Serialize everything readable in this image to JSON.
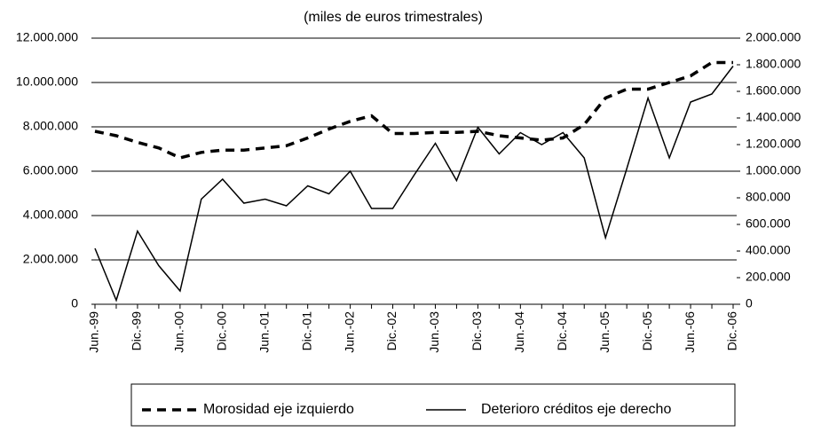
{
  "chart_data": {
    "type": "line",
    "title": "(miles de euros trimestrales)",
    "categories": [
      "Jun.-99",
      null,
      "Dic.-99",
      null,
      "Jun.-00",
      null,
      "Dic.-00",
      null,
      "Jun.-01",
      null,
      "Dic.-01",
      null,
      "Jun.-02",
      null,
      "Dic.-02",
      null,
      "Jun.-03",
      null,
      "Dic.-03",
      null,
      "Jun.-04",
      null,
      "Dic.-04",
      null,
      "Jun.-05",
      null,
      "Dic.-05",
      null,
      "Jun.-06",
      null,
      "Dic.-06"
    ],
    "series": [
      {
        "name": "Morosidad eje izquierdo",
        "color": "#000000",
        "dash": true,
        "values": [
          7800000,
          7600000,
          7300000,
          7050000,
          6600000,
          6850000,
          6950000,
          6950000,
          7050000,
          7150000,
          7500000,
          7900000,
          8250000,
          8500000,
          7700000,
          7700000,
          7750000,
          7750000,
          7800000,
          7600000,
          7500000,
          7400000,
          7500000,
          8100000,
          9300000,
          9700000,
          9700000,
          10000000,
          10300000,
          10900000,
          10900000
        ]
      },
      {
        "name": "Deterioro créditos eje derecho",
        "color": "#000000",
        "dash": false,
        "axis": "y2",
        "values": [
          420000,
          30000,
          550000,
          290000,
          100000,
          790000,
          940000,
          760000,
          790000,
          740000,
          890000,
          830000,
          1000000,
          720000,
          720000,
          970000,
          1210000,
          930000,
          1330000,
          1130000,
          1290000,
          1200000,
          1290000,
          1100000,
          500000,
          1020000,
          1550000,
          1100000,
          1520000,
          1580000,
          1790000
        ]
      }
    ],
    "ylim": [
      0,
      12000000
    ],
    "yticks": [
      0,
      {
        "value": 2000000,
        "label": "2.000.000"
      },
      {
        "value": 4000000,
        "label": "4.000.000"
      },
      {
        "value": 6000000,
        "label": "6.000.000"
      },
      {
        "value": 8000000,
        "label": "8.000.000"
      },
      {
        "value": 10000000,
        "label": "10.000.000"
      },
      {
        "value": 12000000,
        "label": "12.000.000"
      }
    ],
    "y2lim": [
      0,
      2000000
    ],
    "y2ticks": [
      0,
      {
        "value": 200000,
        "label": "200.000"
      },
      {
        "value": 400000,
        "label": "400.000"
      },
      {
        "value": 600000,
        "label": "600.000"
      },
      {
        "value": 800000,
        "label": "800.000"
      },
      {
        "value": 1000000,
        "label": "1.000.000"
      },
      {
        "value": 1200000,
        "label": "1.200.000"
      },
      {
        "value": 1400000,
        "label": "1.400.000"
      },
      {
        "value": 1600000,
        "label": "1.600.000"
      },
      {
        "value": 1800000,
        "label": "1.800.000"
      },
      {
        "value": 2000000,
        "label": "2.000.000"
      }
    ],
    "grid": true
  }
}
